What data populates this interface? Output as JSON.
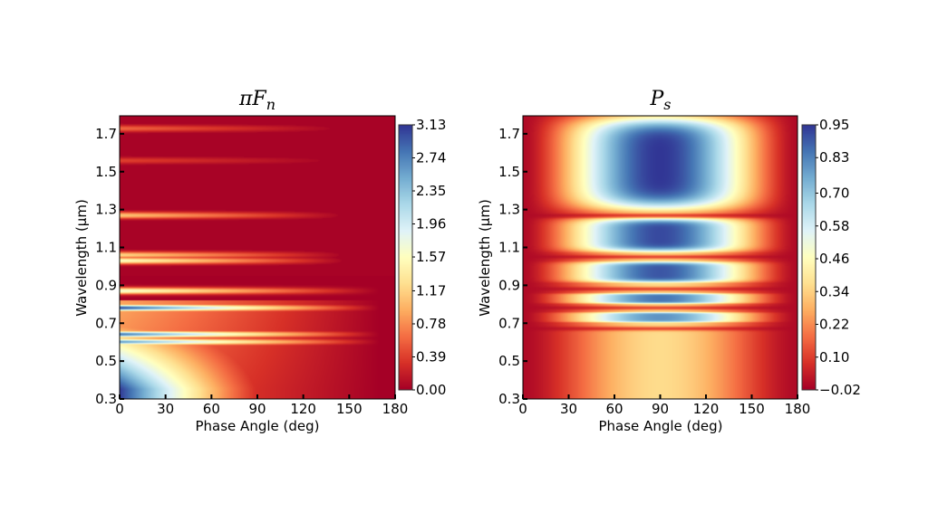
{
  "chart_data": [
    {
      "type": "heatmap",
      "id": "pi-fn",
      "title": "πF",
      "title_subscript": "n",
      "xlabel": "Phase Angle (deg)",
      "ylabel": "Wavelength (μm)",
      "xlim": [
        0,
        180
      ],
      "ylim": [
        0.3,
        1.795
      ],
      "x_ticks": [
        0,
        30,
        60,
        90,
        120,
        150,
        180
      ],
      "x_tick_labels": [
        "0",
        "30",
        "60",
        "90",
        "120",
        "150",
        "180"
      ],
      "y_ticks": [
        0.3,
        0.5,
        0.7,
        0.9,
        1.1,
        1.3,
        1.5,
        1.7
      ],
      "y_tick_labels": [
        "0.3",
        "0.5",
        "0.7",
        "0.9",
        "1.1",
        "1.3",
        "1.5",
        "1.7"
      ],
      "colormap": "RdYlBu",
      "colorbar": {
        "min": 0.0,
        "max": 3.13,
        "ticks": [
          0.0,
          0.39,
          0.78,
          1.17,
          1.57,
          1.96,
          2.35,
          2.74,
          3.13
        ],
        "tick_labels": [
          "0.00",
          "0.39",
          "0.78",
          "1.17",
          "1.57",
          "1.96",
          "2.35",
          "2.74",
          "3.13"
        ]
      },
      "description": "Value highest at small phase angles and short wavelengths (~3.1 near 0 deg, 0.3 μm), decreasing with phase angle; bright horizontal bands at selected wavelengths; near zero for most of the plot above 1.1 μm.",
      "bands_um": [
        {
          "wavelength": 0.78,
          "peak": 3.0
        },
        {
          "wavelength": 0.87,
          "peak": 1.7
        },
        {
          "wavelength": 0.64,
          "peak": 2.8
        },
        {
          "wavelength": 0.6,
          "peak": 2.6
        },
        {
          "wavelength": 1.03,
          "peak": 1.6
        },
        {
          "wavelength": 1.06,
          "peak": 1.2
        },
        {
          "wavelength": 1.27,
          "peak": 1.1
        },
        {
          "wavelength": 1.73,
          "peak": 0.6
        },
        {
          "wavelength": 1.56,
          "peak": 0.4
        }
      ]
    },
    {
      "type": "heatmap",
      "id": "p-s",
      "title": "P",
      "title_subscript": "s",
      "xlabel": "Phase Angle (deg)",
      "ylabel": "Wavelength (μm)",
      "xlim": [
        0,
        180
      ],
      "ylim": [
        0.3,
        1.795
      ],
      "x_ticks": [
        0,
        30,
        60,
        90,
        120,
        150,
        180
      ],
      "x_tick_labels": [
        "0",
        "30",
        "60",
        "90",
        "120",
        "150",
        "180"
      ],
      "y_ticks": [
        0.3,
        0.5,
        0.7,
        0.9,
        1.1,
        1.3,
        1.5,
        1.7
      ],
      "y_tick_labels": [
        "0.3",
        "0.5",
        "0.7",
        "0.9",
        "1.1",
        "1.3",
        "1.5",
        "1.7"
      ],
      "colormap": "RdYlBu",
      "colorbar": {
        "min": -0.02,
        "max": 0.95,
        "ticks": [
          -0.02,
          0.1,
          0.22,
          0.34,
          0.46,
          0.58,
          0.7,
          0.83,
          0.95
        ],
        "tick_labels": [
          "−0.02",
          "0.10",
          "0.22",
          "0.34",
          "0.46",
          "0.58",
          "0.70",
          "0.83",
          "0.95"
        ]
      },
      "description": "Polarization peaks near 90 deg phase angle (~0.95) and falls to ~0 at 0 and 180 deg; lobes of high polarization at 1.3–1.8, 1.1–1.25, 0.92–1.02, 0.83 and 0.73 μm, lower (~0.35) below 0.7 μm.",
      "peak_phase_deg": 90,
      "high_lobes_um": [
        {
          "from": 1.3,
          "to": 1.79,
          "peak": 0.95
        },
        {
          "from": 1.08,
          "to": 1.25,
          "peak": 0.92
        },
        {
          "from": 0.92,
          "to": 1.02,
          "peak": 0.9
        },
        {
          "from": 0.81,
          "to": 0.85,
          "peak": 0.85
        },
        {
          "from": 0.71,
          "to": 0.75,
          "peak": 0.8
        }
      ]
    }
  ]
}
